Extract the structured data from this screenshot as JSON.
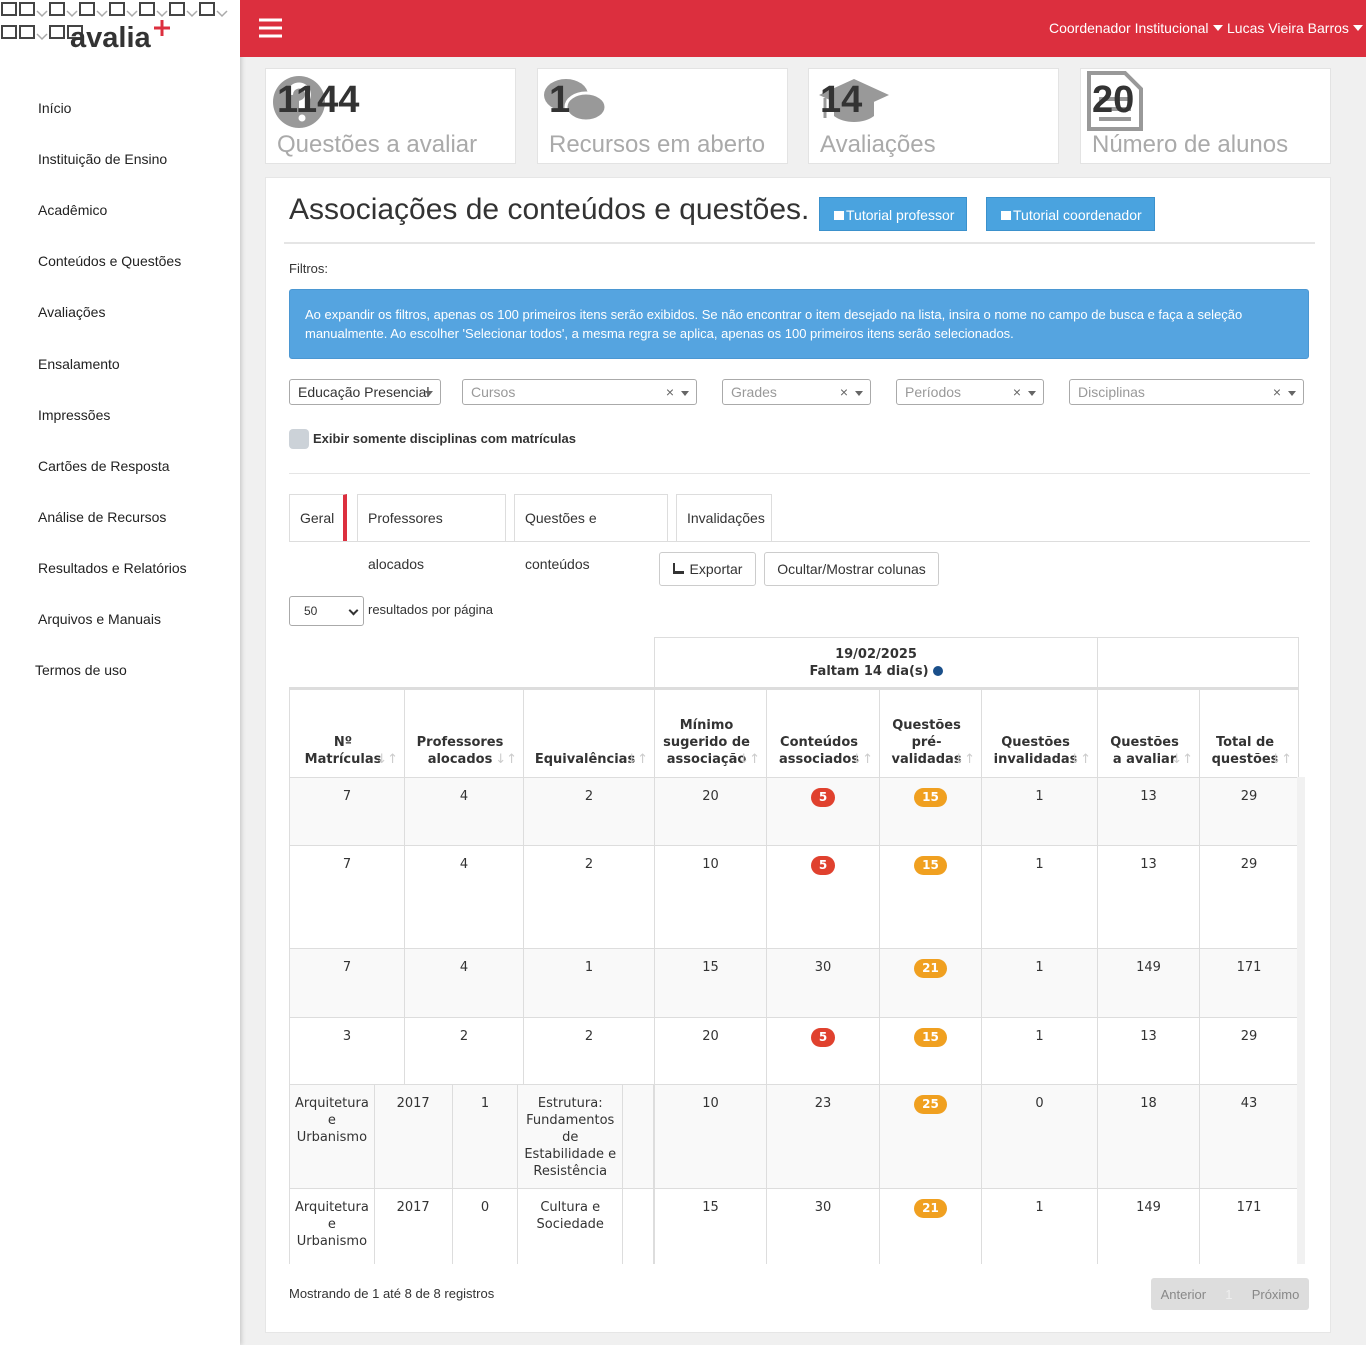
{
  "brand": {
    "name": "avalia"
  },
  "topbar": {
    "role": "Coordenador Institucional",
    "user": "Lucas Vieira Barros"
  },
  "sidebar": {
    "items": [
      {
        "label": "Início",
        "submenu": false
      },
      {
        "label": "Instituição de Ensino",
        "submenu": true
      },
      {
        "label": "Acadêmico",
        "submenu": true
      },
      {
        "label": "Conteúdos e Questões",
        "submenu": true
      },
      {
        "label": "Avaliações",
        "submenu": true
      },
      {
        "label": "Ensalamento",
        "submenu": true
      },
      {
        "label": "Impressões",
        "submenu": true
      },
      {
        "label": "Cartões de Resposta",
        "submenu": true
      },
      {
        "label": "Análise de Recursos",
        "submenu": false
      },
      {
        "label": "Resultados e Relatórios",
        "submenu": true
      },
      {
        "label": "Arquivos e Manuais",
        "submenu": false
      },
      {
        "label": "Termos de uso",
        "submenu": false
      }
    ]
  },
  "stats": [
    {
      "value": 1144,
      "label": "Questões a avaliar"
    },
    {
      "value": 1,
      "label": "Recursos em aberto"
    },
    {
      "value": 14,
      "label": "Avaliações"
    },
    {
      "value": 20,
      "label": "Número de alunos"
    }
  ],
  "panel": {
    "title": "Associações de conteúdos e questões.",
    "buttons": [
      "Tutorial professor",
      "Tutorial coordenador"
    ],
    "filters_label": "Filtros:",
    "info": "Ao expandir os filtros, apenas os 100 primeiros itens serão exibidos. Se não encontrar o item desejado na lista, insira o nome no campo de busca e faça a seleção manualmente. Ao escolher 'Selecionar todos', a mesma regra se aplica, apenas os 100 primeiros itens serão selecionados.",
    "selects": [
      "Educação Presencial",
      "Cursos",
      "Grades",
      "Períodos",
      "Disciplinas"
    ],
    "checkbox": "Exibir somente disciplinas com matrículas",
    "tabs": [
      "Geral",
      "Professores alocados",
      "Questões e conteúdos",
      "Invalidações"
    ],
    "active_tab": 0,
    "actions": [
      "Exportar",
      "Ocultar/Mostrar colunas"
    ],
    "page_size": "50",
    "page_size_label": "resultados por página"
  },
  "table": {
    "group": {
      "date": "19/02/2025",
      "remaining": "Faltam 14 dia(s)"
    },
    "columns": [
      "Nº Matrículas",
      "Professores alocados",
      "Equivalências",
      "Mínimo sugerido de associação",
      "Conteúdos associados",
      "Questões pré-validadas",
      "Questões invalidadas",
      "Questões a avaliar",
      "Total de questões"
    ],
    "rows": [
      [
        7,
        4,
        2,
        20,
        5,
        15,
        1,
        13,
        29
      ],
      [
        7,
        4,
        2,
        10,
        5,
        15,
        1,
        13,
        29
      ],
      [
        7,
        4,
        1,
        15,
        30,
        21,
        1,
        149,
        171
      ],
      [
        3,
        2,
        2,
        20,
        5,
        15,
        1,
        13,
        29
      ]
    ],
    "course_rows": [
      {
        "course": "Arquitetura e Urbanismo",
        "year": 2017,
        "count": 1,
        "discipline": "Estrutura: Fundamentos de Estabilidade e Resistência",
        "values": [
          10,
          23,
          25,
          0,
          18,
          43
        ]
      },
      {
        "course": "Arquitetura e Urbanismo",
        "year": 2017,
        "count": 0,
        "discipline": "Cultura e Sociedade",
        "values": [
          15,
          30,
          21,
          1,
          149,
          171
        ]
      }
    ]
  },
  "footer": {
    "summary": "Mostrando de 1 até 8 de 8 registros",
    "pagination": [
      "Anterior",
      "1",
      "Próximo"
    ]
  }
}
